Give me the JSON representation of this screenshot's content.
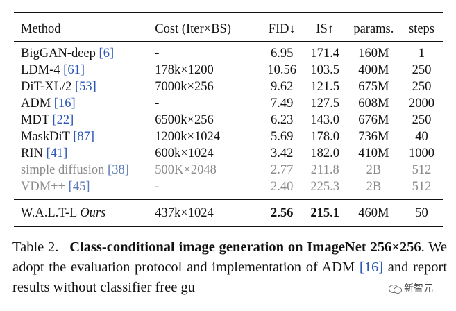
{
  "table": {
    "headers": {
      "method": "Method",
      "cost": "Cost (Iter×BS)",
      "fid": "FID↓",
      "is": "IS↑",
      "params": "params.",
      "steps": "steps"
    },
    "rows": [
      {
        "name": "BigGAN-deep",
        "ref": "[6]",
        "cost": "-",
        "fid": "6.95",
        "is": "171.4",
        "params": "160M",
        "steps": "1"
      },
      {
        "name": "LDM-4",
        "ref": "[61]",
        "cost": "178k×1200",
        "fid": "10.56",
        "is": "103.5",
        "params": "400M",
        "steps": "250"
      },
      {
        "name": "DiT-XL/2",
        "ref": "[53]",
        "cost": "7000k×256",
        "fid": "9.62",
        "is": "121.5",
        "params": "675M",
        "steps": "250"
      },
      {
        "name": "ADM",
        "ref": "[16]",
        "cost": "-",
        "fid": "7.49",
        "is": "127.5",
        "params": "608M",
        "steps": "2000"
      },
      {
        "name": "MDT",
        "ref": "[22]",
        "cost": "6500k×256",
        "fid": "6.23",
        "is": "143.0",
        "params": "676M",
        "steps": "250"
      },
      {
        "name": "MaskDiT",
        "ref": "[87]",
        "cost": "1200k×1024",
        "fid": "5.69",
        "is": "178.0",
        "params": "736M",
        "steps": "40"
      },
      {
        "name": "RIN",
        "ref": "[41]",
        "cost": "600k×1024",
        "fid": "3.42",
        "is": "182.0",
        "params": "410M",
        "steps": "1000"
      }
    ],
    "gray_rows": [
      {
        "name": "simple diffusion",
        "ref": "[38]",
        "cost": "500K×2048",
        "fid": "2.77",
        "is": "211.8",
        "params": "2B",
        "steps": "512"
      },
      {
        "name": "VDM++",
        "ref": "[45]",
        "cost": "-",
        "fid": "2.40",
        "is": "225.3",
        "params": "2B",
        "steps": "512"
      }
    ],
    "ours": {
      "name": "W.A.L.T-L",
      "tag": "Ours",
      "cost": "437k×1024",
      "fid": "2.56",
      "is": "215.1",
      "params": "460M",
      "steps": "50"
    }
  },
  "caption": {
    "label": "Table 2.",
    "bold_text": "Class-conditional image generation on ImageNet 256×256",
    "text_a": ". We adopt the evaluation protocol and implementation of ADM ",
    "ref": "[16]",
    "text_b": " and report results without classifier free gu"
  },
  "watermark": {
    "icon": "wechat-icon",
    "text": "新智元"
  }
}
